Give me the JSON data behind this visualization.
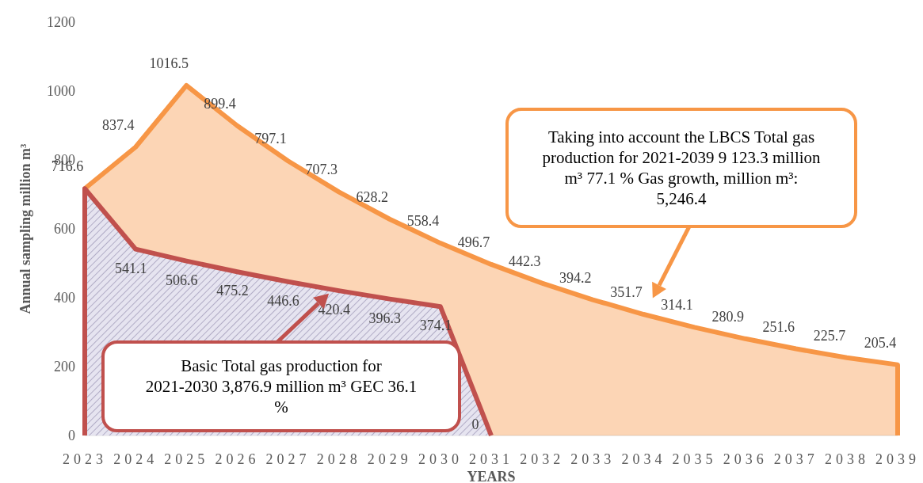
{
  "chart_data": {
    "type": "area",
    "xlabel": "YEARS",
    "ylabel": "Annual sampling million m³",
    "categories": [
      "2023",
      "2024",
      "2025",
      "2026",
      "2027",
      "2028",
      "2029",
      "2030",
      "2031",
      "2032",
      "2033",
      "2034",
      "2035",
      "2036",
      "2037",
      "2038",
      "2039"
    ],
    "series": [
      {
        "color": "#f79646",
        "values": [
          716.6,
          837.4,
          1016.5,
          899.4,
          797.1,
          707.3,
          628.2,
          558.4,
          496.7,
          442.3,
          394.2,
          351.7,
          314.1,
          280.9,
          251.6,
          225.7,
          205.4
        ],
        "value_labels": [
          "716.6",
          "837.4",
          "1016.5",
          "899.4",
          "797.1",
          "707.3",
          "628.2",
          "558.4",
          "496.7",
          "442.3",
          "394.2",
          "351.7",
          "314.1",
          "280.9",
          "251.6",
          "225.7",
          "205.4"
        ]
      },
      {
        "color": "#c0504d",
        "values": [
          716.6,
          541.1,
          506.6,
          475.2,
          446.6,
          420.4,
          396.3,
          374.1,
          0,
          null,
          null,
          null,
          null,
          null,
          null,
          null,
          null
        ],
        "value_labels": [
          null,
          "541.1",
          "506.6",
          "475.2",
          "446.6",
          "420.4",
          "396.3",
          "374.1",
          "0",
          null,
          null,
          null,
          null,
          null,
          null,
          null,
          null
        ]
      }
    ],
    "ylim": [
      0,
      1200
    ],
    "yticks": [
      0,
      200,
      400,
      600,
      800,
      1000,
      1200
    ],
    "annotations": [
      "Taking into account the LBCS Total gas production for 2021-2039 9 123.3 million m³ 77.1 % Gas growth, million m³: 5,246.4",
      "Basic Total gas production for 2021-2030 3,876.9 million m³ GEC 36.1 %"
    ]
  }
}
